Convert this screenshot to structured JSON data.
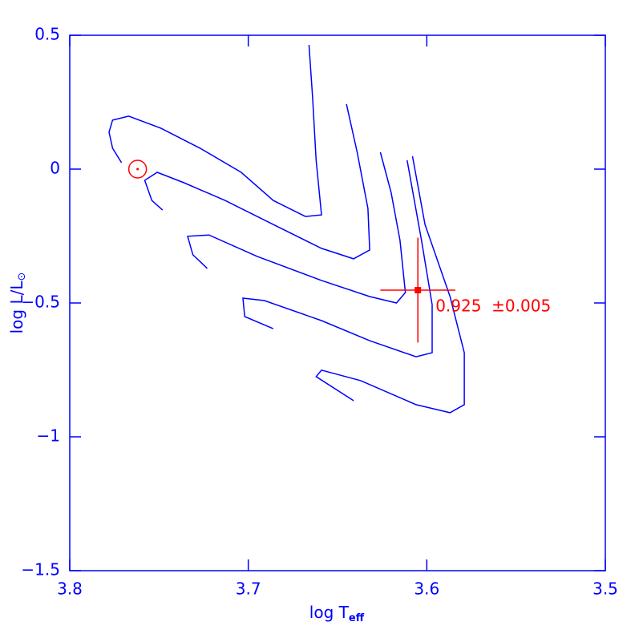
{
  "chart_data": {
    "type": "line",
    "xlabel": "log T",
    "xlabel_sub": "eff",
    "ylabel": "log L/L",
    "ylabel_sub": "⊙",
    "xlim": [
      3.8,
      3.5
    ],
    "ylim": [
      -1.5,
      0.5
    ],
    "xticks": [
      3.8,
      3.7,
      3.6,
      3.5
    ],
    "yticks": [
      0.5,
      0,
      {
        "value": -0.5,
        "label": "−0.5"
      },
      {
        "value": -1,
        "label": "−1"
      },
      {
        "value": -1.5,
        "label": "−1.5"
      }
    ],
    "color": "#0000ff",
    "series": [
      {
        "x": [
          3.771,
          3.776,
          3.778,
          3.776,
          3.767,
          3.749,
          3.727,
          3.704,
          3.686,
          3.668,
          3.659,
          3.662,
          3.664,
          3.666
        ],
        "values": [
          0.024,
          0.078,
          0.138,
          0.183,
          0.198,
          0.153,
          0.078,
          -0.012,
          -0.117,
          -0.177,
          -0.171,
          0.033,
          0.272,
          0.464
        ]
      },
      {
        "x": [
          3.748,
          3.754,
          3.758,
          3.751,
          3.736,
          3.713,
          3.686,
          3.659,
          3.641,
          3.632,
          3.633,
          3.639,
          3.645
        ],
        "values": [
          -0.153,
          -0.117,
          -0.042,
          -0.012,
          -0.051,
          -0.117,
          -0.207,
          -0.296,
          -0.335,
          -0.302,
          -0.147,
          0.063,
          0.243
        ]
      },
      {
        "x": [
          3.723,
          3.731,
          3.734,
          3.722,
          3.695,
          3.659,
          3.632,
          3.617,
          3.612,
          3.615,
          3.62,
          3.626
        ],
        "values": [
          -0.371,
          -0.32,
          -0.251,
          -0.246,
          -0.326,
          -0.416,
          -0.476,
          -0.5,
          -0.461,
          -0.266,
          -0.087,
          0.063
        ]
      },
      {
        "x": [
          3.686,
          3.702,
          3.703,
          3.691,
          3.659,
          3.632,
          3.606,
          3.597,
          3.597,
          3.603,
          3.611
        ],
        "values": [
          -0.596,
          -0.551,
          -0.482,
          -0.491,
          -0.566,
          -0.641,
          -0.701,
          -0.686,
          -0.506,
          -0.266,
          0.033
        ]
      },
      {
        "x": [
          3.641,
          3.662,
          3.659,
          3.637,
          3.606,
          3.587,
          3.579,
          3.579,
          3.587,
          3.601,
          3.608
        ],
        "values": [
          -0.865,
          -0.775,
          -0.751,
          -0.79,
          -0.88,
          -0.91,
          -0.88,
          -0.686,
          -0.476,
          -0.207,
          0.048
        ]
      }
    ],
    "point": {
      "x": 3.605,
      "y": -0.452,
      "xerr": 0.021,
      "yerr": 0.196,
      "color": "#ff0000",
      "label": "0.925  ±0.005"
    },
    "sun": {
      "x": 3.762,
      "y": 0,
      "color": "#ff0000"
    }
  }
}
